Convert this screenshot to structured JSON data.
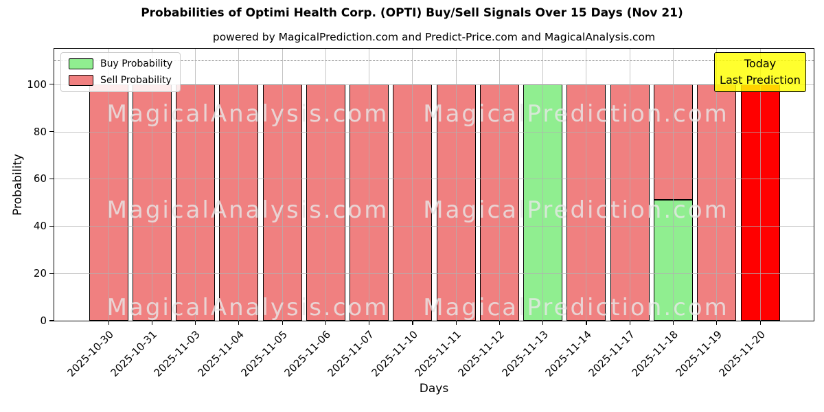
{
  "title": "Probabilities of Optimi Health Corp. (OPTI) Buy/Sell Signals Over 15 Days (Nov 21)",
  "subtitle": "powered by MagicalPrediction.com and Predict-Price.com and MagicalAnalysis.com",
  "legend": {
    "items": [
      {
        "label": "Buy Probability",
        "color": "#90EE90"
      },
      {
        "label": "Sell Probability",
        "color": "#F08080"
      }
    ]
  },
  "annotation": {
    "line1": "Today",
    "line2": "Last Prediction",
    "bg_color": "#FFFF00"
  },
  "watermarks": {
    "left": "MagicalAnalysis.com",
    "right": "MagicalPrediction.com"
  },
  "colors": {
    "buy": "#90EE90",
    "sell": "#F08080",
    "today_sell": "#FF0000",
    "grid": "#B0B0B0",
    "dashed_line": "#7F7F7F",
    "annotation_bg": "#FFFF00"
  },
  "chart_data": {
    "type": "bar",
    "stacked": true,
    "title": "Probabilities of Optimi Health Corp. (OPTI) Buy/Sell Signals Over 15 Days (Nov 21)",
    "xlabel": "Days",
    "ylabel": "Probability",
    "ylim": [
      0,
      115
    ],
    "yticks": [
      0,
      20,
      40,
      60,
      80,
      100
    ],
    "grid": true,
    "legend_position": "upper left",
    "dashed_line_y": 110,
    "categories": [
      "2025-10-30",
      "2025-10-31",
      "2025-11-03",
      "2025-11-04",
      "2025-11-05",
      "2025-11-06",
      "2025-11-07",
      "2025-11-10",
      "2025-11-11",
      "2025-11-12",
      "2025-11-13",
      "2025-11-14",
      "2025-11-17",
      "2025-11-18",
      "2025-11-19",
      "2025-11-20"
    ],
    "series": [
      {
        "name": "Buy Probability",
        "color": "#90EE90",
        "values": [
          0,
          0,
          0,
          0,
          0,
          0,
          0,
          0,
          0,
          0,
          100,
          0,
          0,
          51,
          0,
          0
        ]
      },
      {
        "name": "Sell Probability",
        "color": "#F08080",
        "values": [
          100,
          100,
          100,
          100,
          100,
          100,
          100,
          100,
          100,
          100,
          0,
          100,
          100,
          49,
          100,
          0
        ]
      },
      {
        "name": "Today Prediction (Sell)",
        "color": "#FF0000",
        "values": [
          0,
          0,
          0,
          0,
          0,
          0,
          0,
          0,
          0,
          0,
          0,
          0,
          0,
          0,
          0,
          100
        ]
      }
    ]
  }
}
